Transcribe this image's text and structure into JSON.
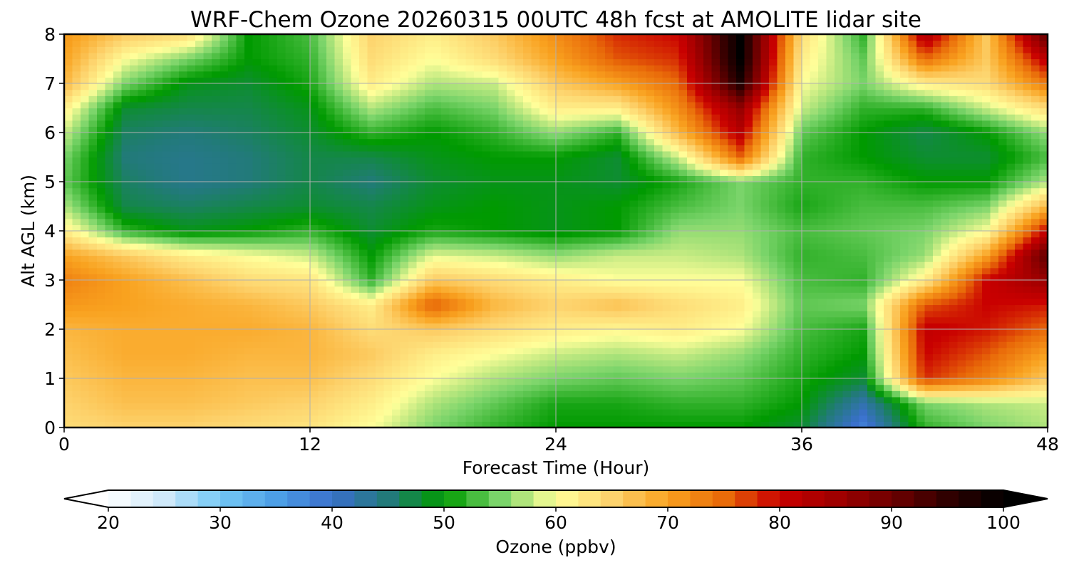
{
  "chart_data": {
    "type": "heatmap",
    "title": "WRF-Chem Ozone  20260315 00UTC 48h fcst at AMOLITE lidar site",
    "xlabel": "Forecast Time (Hour)",
    "ylabel": "Alt AGL (km)",
    "xlim": [
      0,
      48
    ],
    "ylim": [
      0,
      8
    ],
    "xticks": [
      "0",
      "12",
      "24",
      "36",
      "48"
    ],
    "yticks": [
      "0",
      "1",
      "2",
      "3",
      "4",
      "5",
      "6",
      "7",
      "8"
    ],
    "grid": true,
    "x": [
      0,
      3,
      6,
      9,
      12,
      15,
      18,
      21,
      24,
      27,
      30,
      33,
      36,
      39,
      42,
      45,
      48
    ],
    "y": [
      0,
      0.5,
      1,
      1.5,
      2,
      2.5,
      3,
      3.5,
      4,
      4.5,
      5,
      5.5,
      6,
      6.5,
      7,
      7.5,
      8
    ],
    "z": [
      [
        64,
        65,
        65,
        64,
        63,
        60,
        55,
        52,
        50,
        50,
        50,
        50,
        48,
        38,
        52,
        55,
        57
      ],
      [
        65,
        67,
        67,
        66,
        65,
        62,
        57,
        54,
        51,
        51,
        52,
        52,
        50,
        42,
        55,
        57,
        58
      ],
      [
        66,
        68,
        68,
        67,
        67,
        64,
        60,
        57,
        55,
        54,
        55,
        54,
        51,
        48,
        78,
        73,
        66
      ],
      [
        67,
        69,
        69,
        68,
        68,
        66,
        62,
        60,
        58,
        57,
        58,
        56,
        52,
        50,
        80,
        76,
        70
      ],
      [
        68,
        69,
        69,
        69,
        68,
        64,
        66,
        64,
        62,
        61,
        62,
        60,
        53,
        51,
        81,
        79,
        75
      ],
      [
        71,
        70,
        69,
        68,
        66,
        62,
        76,
        68,
        65,
        67,
        64,
        62,
        54,
        55,
        76,
        80,
        79
      ],
      [
        73,
        70,
        67,
        64,
        63,
        52,
        66,
        64,
        62,
        60,
        60,
        60,
        53,
        52,
        62,
        80,
        86
      ],
      [
        70,
        66,
        62,
        60,
        58,
        50,
        59,
        58,
        56,
        58,
        58,
        57,
        52,
        53,
        56,
        70,
        92
      ],
      [
        62,
        52,
        49,
        50,
        52,
        48,
        51,
        50,
        49,
        50,
        56,
        56,
        53,
        54,
        55,
        60,
        81
      ],
      [
        57,
        47,
        46,
        47,
        48,
        47,
        49,
        50,
        49,
        50,
        53,
        55,
        51,
        53,
        53,
        55,
        68
      ],
      [
        54,
        46,
        44,
        45,
        47,
        45,
        48,
        49,
        49,
        48,
        51,
        55,
        52,
        52,
        50,
        50,
        57
      ],
      [
        55,
        45,
        44,
        45,
        47,
        47,
        49,
        50,
        50,
        48,
        58,
        75,
        52,
        50,
        48,
        48,
        53
      ],
      [
        58,
        46,
        45,
        46,
        48,
        52,
        50,
        52,
        56,
        52,
        68,
        82,
        54,
        50,
        47,
        50,
        56
      ],
      [
        62,
        48,
        47,
        47,
        49,
        57,
        53,
        55,
        62,
        62,
        72,
        86,
        58,
        52,
        52,
        58,
        64
      ],
      [
        68,
        55,
        49,
        48,
        51,
        62,
        57,
        58,
        66,
        70,
        75,
        97,
        60,
        55,
        62,
        64,
        74
      ],
      [
        70,
        60,
        55,
        50,
        52,
        64,
        60,
        64,
        70,
        76,
        78,
        100,
        62,
        54,
        75,
        66,
        82
      ],
      [
        71,
        66,
        64,
        50,
        53,
        65,
        62,
        66,
        72,
        78,
        80,
        100,
        64,
        52,
        84,
        66,
        92
      ]
    ],
    "colorbar": {
      "label": "Ozone  (ppbv)",
      "min": 20,
      "max": 100,
      "step": 2,
      "ticks": [
        "20",
        "30",
        "40",
        "50",
        "60",
        "70",
        "80",
        "90",
        "100"
      ],
      "extend": "both",
      "colors": {
        "20": "#ffffff",
        "25": "#cfe9fa",
        "30": "#74c8f5",
        "35": "#4d9fe6",
        "40": "#3a6fcc",
        "45": "#227a7a",
        "50": "#009a00",
        "55": "#7ad46a",
        "58": "#c9ec84",
        "60": "#ffff9a",
        "65": "#fdd36d",
        "70": "#f9a21f",
        "75": "#e96b09",
        "80": "#c90000",
        "85": "#a00000",
        "90": "#6e0000",
        "95": "#300000",
        "100": "#000000"
      }
    }
  }
}
